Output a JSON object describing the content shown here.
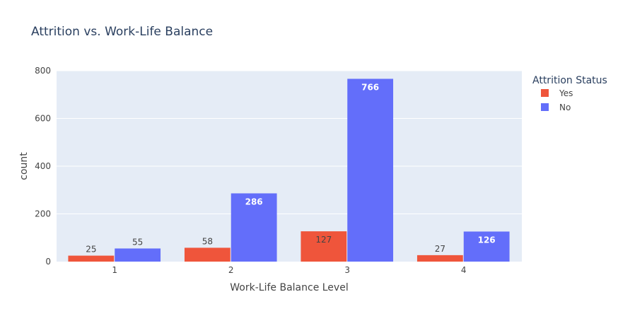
{
  "chart_data": {
    "type": "bar",
    "title": "Attrition vs. Work-Life Balance",
    "xlabel": "Work-Life Balance Level",
    "ylabel": "count",
    "categories": [
      "1",
      "2",
      "3",
      "4"
    ],
    "series": [
      {
        "name": "Yes",
        "color": "#EF553B",
        "values": [
          25,
          58,
          127,
          27
        ]
      },
      {
        "name": "No",
        "color": "#636EFA",
        "values": [
          55,
          286,
          766,
          126
        ]
      }
    ],
    "ylim": [
      0,
      800
    ],
    "yticks": [
      "0",
      "200",
      "400",
      "600",
      "800"
    ],
    "grid": true,
    "legend": {
      "title": "Attrition Status",
      "placement": "top-right"
    },
    "colors": {
      "plot_background": "#E5ECF6",
      "gridline": "#FFFFFF",
      "text": "#444444",
      "title": "#2A3F5F"
    }
  }
}
